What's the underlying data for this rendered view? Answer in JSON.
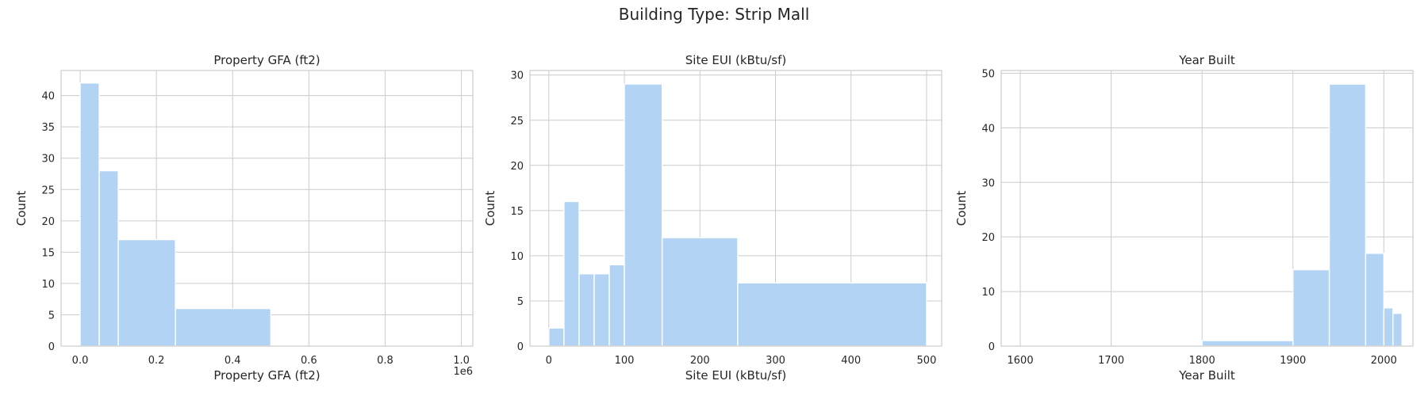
{
  "figure": {
    "title": "Building Type: Strip Mall"
  },
  "chart_data": [
    {
      "type": "bar",
      "title": "Property GFA (ft2)",
      "xlabel": "Property GFA (ft2)",
      "ylabel": "Count",
      "x_offset_text": "1e6",
      "xlim": [
        -0.05,
        1.03
      ],
      "ylim": [
        0,
        44
      ],
      "xticks": [
        0.0,
        0.2,
        0.4,
        0.6,
        0.8,
        1.0
      ],
      "xtick_labels": [
        "0.0",
        "0.2",
        "0.4",
        "0.6",
        "0.8",
        "1.0"
      ],
      "yticks": [
        0,
        5,
        10,
        15,
        20,
        25,
        30,
        35,
        40
      ],
      "yticks_labels": [
        "0",
        "5",
        "10",
        "15",
        "20",
        "25",
        "30",
        "35",
        "40"
      ],
      "bins": [
        [
          0.0,
          0.05
        ],
        [
          0.05,
          0.1
        ],
        [
          0.1,
          0.25
        ],
        [
          0.25,
          0.5
        ],
        [
          0.5,
          1.0
        ]
      ],
      "counts": [
        42,
        28,
        17,
        6,
        0
      ],
      "color": "#b3d3f4"
    },
    {
      "type": "bar",
      "title": "Site EUI (kBtu/sf)",
      "xlabel": "Site EUI (kBtu/sf)",
      "ylabel": "Count",
      "xlim": [
        -25,
        520
      ],
      "ylim": [
        0,
        30.5
      ],
      "xticks": [
        0,
        100,
        200,
        300,
        400,
        500
      ],
      "xtick_labels": [
        "0",
        "100",
        "200",
        "300",
        "400",
        "500"
      ],
      "yticks": [
        0,
        5,
        10,
        15,
        20,
        25,
        30
      ],
      "yticks_labels": [
        "0",
        "5",
        "10",
        "15",
        "20",
        "25",
        "30"
      ],
      "bins": [
        [
          0,
          20
        ],
        [
          20,
          40
        ],
        [
          40,
          60
        ],
        [
          60,
          80
        ],
        [
          80,
          100
        ],
        [
          100,
          150
        ],
        [
          150,
          250
        ],
        [
          250,
          500
        ]
      ],
      "counts": [
        2,
        16,
        8,
        8,
        9,
        29,
        12,
        7
      ],
      "color": "#b3d3f4"
    },
    {
      "type": "bar",
      "title": "Year Built",
      "xlabel": "Year Built",
      "ylabel": "Count",
      "xlim": [
        1579,
        2032
      ],
      "ylim": [
        0,
        50.5
      ],
      "xticks": [
        1600,
        1700,
        1800,
        1900,
        2000
      ],
      "xtick_labels": [
        "1600",
        "1700",
        "1800",
        "1900",
        "2000"
      ],
      "yticks": [
        0,
        10,
        20,
        30,
        40,
        50
      ],
      "yticks_labels": [
        "0",
        "10",
        "20",
        "30",
        "40",
        "50"
      ],
      "bins": [
        [
          1600,
          1800
        ],
        [
          1800,
          1900
        ],
        [
          1900,
          1940
        ],
        [
          1940,
          1980
        ],
        [
          1980,
          2000
        ],
        [
          2000,
          2010
        ],
        [
          2010,
          2020
        ]
      ],
      "counts": [
        0,
        1,
        14,
        48,
        17,
        7,
        6
      ],
      "color": "#b3d3f4"
    }
  ]
}
